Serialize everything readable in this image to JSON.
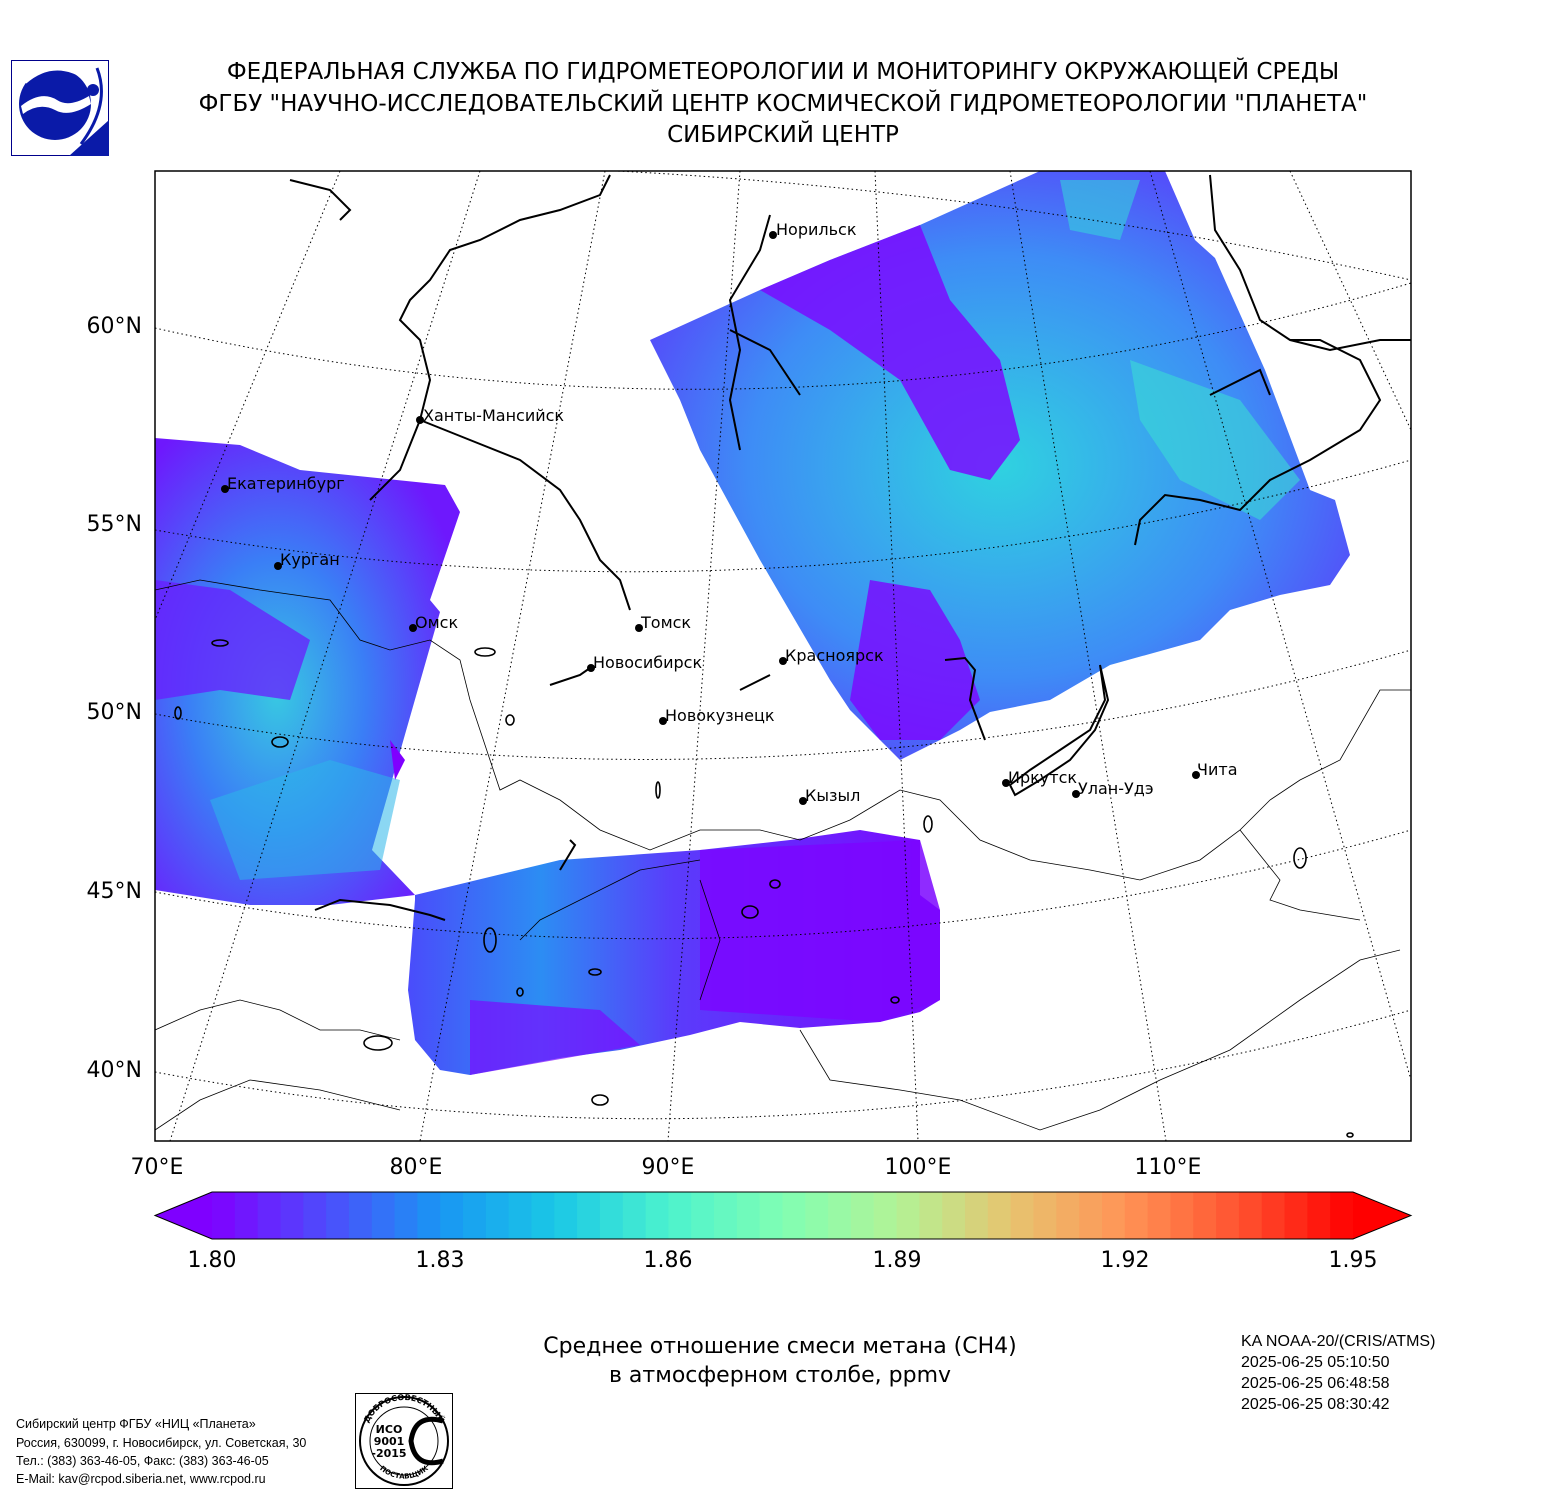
{
  "header": {
    "line1": "ФЕДЕРАЛЬНАЯ СЛУЖБА ПО ГИДРОМЕТЕОРОЛОГИИ И МОНИТОРИНГУ ОКРУЖАЮЩЕЙ СРЕДЫ",
    "line2": "ФГБУ \"НАУЧНО-ИССЛЕДОВАТЕЛЬСКИЙ ЦЕНТР КОСМИЧЕСКОЙ ГИДРОМЕТЕОРОЛОГИИ \"ПЛАНЕТА\"",
    "line3": "СИБИРСКИЙ ЦЕНТР"
  },
  "map": {
    "lat_labels": [
      "60°N",
      "55°N",
      "50°N",
      "45°N",
      "40°N"
    ],
    "lon_labels": [
      "70°E",
      "80°E",
      "90°E",
      "100°E",
      "110°E"
    ],
    "cities": [
      {
        "name": "Норильск"
      },
      {
        "name": "Ханты-Мансийск"
      },
      {
        "name": "Екатеринбург"
      },
      {
        "name": "Курган"
      },
      {
        "name": "Омск"
      },
      {
        "name": "Томск"
      },
      {
        "name": "Новосибирск"
      },
      {
        "name": "Красноярск"
      },
      {
        "name": "Новокузнецк"
      },
      {
        "name": "Кызыл"
      },
      {
        "name": "Иркутск"
      },
      {
        "name": "Улан-Удэ"
      },
      {
        "name": "Чита"
      }
    ]
  },
  "colorbar": {
    "ticks": [
      "1.80",
      "1.83",
      "1.86",
      "1.89",
      "1.92",
      "1.95"
    ],
    "min": 1.8,
    "max": 1.95,
    "colors": [
      "#7f00ff",
      "#4d4dfc",
      "#1996f3",
      "#1ac7e6",
      "#4cf2ce",
      "#80feb3",
      "#b2f396",
      "#e6c46f",
      "#ff9456",
      "#ff5330",
      "#ff0000"
    ]
  },
  "caption": {
    "line1": "Среднее отношение смеси метана (CH4)",
    "line2": "в атмосферном столбе, ppmv"
  },
  "satellite": {
    "line1": "KA NOAA-20/(CRIS/ATMS)",
    "line2": "2025-06-25 05:10:50",
    "line3": "2025-06-25 06:48:58",
    "line4": "2025-06-25 08:30:42"
  },
  "address": {
    "line1": "Сибирский центр ФГБУ «НИЦ «Планета»",
    "line2": "Россия, 630099, г. Новосибирск, ул. Советская, 30",
    "line3": "Тел.: (383) 363-46-05, Факс: (383) 363-46-05",
    "line4": "E-Mail: kav@rcpod.siberia.net, www.rcpod.ru"
  },
  "certificate": {
    "top_text": "ДОБРОСОВЕСТНЫЙ",
    "line1": "ИСО",
    "line2": "9001",
    "line3": "-2015",
    "bottom_text": "ПОСТАВЩИК"
  },
  "colors": {
    "purple": "#7f00ff",
    "blue": "#4a4cfb",
    "cyan": "#22c4e4",
    "teal": "#3ee6d6"
  }
}
